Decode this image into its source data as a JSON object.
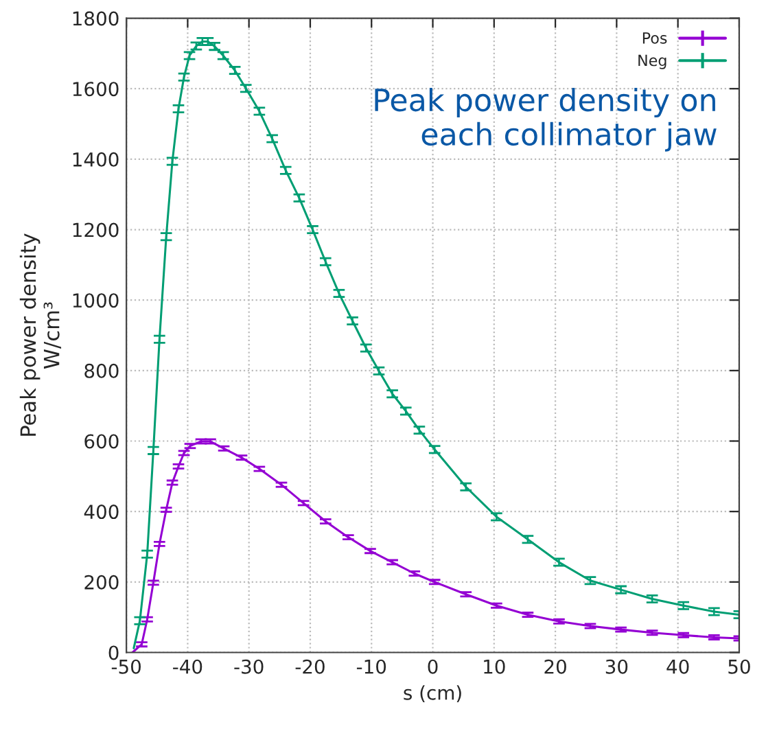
{
  "chart_data": {
    "type": "line",
    "xlabel": "s (cm)",
    "ylabel": "Peak power density\nW/cm³",
    "annotations": [
      "Peak power density on\neach collimator jaw"
    ],
    "xlim": [
      -50,
      50
    ],
    "xticks": [
      -50,
      -40,
      -30,
      -20,
      -10,
      0,
      10,
      20,
      30,
      40,
      50
    ],
    "ylim": [
      0,
      1800
    ],
    "yticks": [
      0,
      200,
      400,
      600,
      800,
      1000,
      1200,
      1400,
      1600,
      1800
    ],
    "grid": true,
    "legend": "top right",
    "marker": "none",
    "line_style": "solid",
    "series": [
      {
        "name": "Pos",
        "color": "#9400d3",
        "x": [
          -49,
          -47.5,
          -46.6,
          -45.6,
          -44.6,
          -43.5,
          -42.5,
          -41.5,
          -40.6,
          -39.6,
          -37.8,
          -36.3,
          -34.1,
          -31.2,
          -28.3,
          -24.7,
          -21.1,
          -17.5,
          -13.8,
          -10.2,
          -6.6,
          -3,
          0.3,
          5.4,
          10.4,
          15.5,
          20.6,
          25.7,
          30.7,
          35.8,
          40.9,
          45.9,
          50
        ],
        "values": [
          0,
          23,
          94,
          198,
          308,
          405,
          482,
          528,
          566,
          586,
          599,
          599,
          579,
          553,
          521,
          476,
          424,
          372,
          327,
          288,
          256,
          224,
          200,
          165,
          133,
          107,
          88,
          75,
          65,
          56,
          49,
          43,
          40
        ],
        "errors": [
          null,
          6,
          6,
          6,
          6,
          6,
          6,
          6,
          6,
          6,
          6,
          6,
          6,
          6,
          6,
          6,
          6,
          6,
          6,
          6,
          6,
          6,
          6,
          6,
          6,
          6,
          6,
          6,
          6,
          6,
          6,
          6,
          6
        ]
      },
      {
        "name": "Neg",
        "color": "#009e73",
        "x": [
          -48.8,
          -47.8,
          -46.6,
          -45.6,
          -44.6,
          -43.5,
          -42.5,
          -41.5,
          -40.6,
          -39.7,
          -38.6,
          -37.6,
          -36.7,
          -35.6,
          -34.2,
          -32.3,
          -30.5,
          -28.3,
          -26.2,
          -24,
          -21.8,
          -19.6,
          -17.5,
          -15.3,
          -13.1,
          -10.9,
          -8.8,
          -6.6,
          -4.4,
          -2.2,
          0.3,
          5.4,
          10.4,
          15.5,
          20.6,
          25.7,
          30.7,
          35.8,
          40.9,
          45.9,
          50
        ],
        "values": [
          12,
          90,
          279,
          573,
          889,
          1180,
          1394,
          1543,
          1633,
          1694,
          1721,
          1734,
          1734,
          1720,
          1694,
          1652,
          1601,
          1536,
          1458,
          1368,
          1290,
          1200,
          1109,
          1019,
          941,
          864,
          799,
          734,
          685,
          631,
          576,
          470,
          385,
          321,
          256,
          204,
          178,
          152,
          133,
          116,
          107
        ],
        "errors": [
          null,
          10,
          10,
          10,
          10,
          10,
          10,
          10,
          10,
          10,
          10,
          10,
          10,
          10,
          10,
          10,
          10,
          10,
          10,
          10,
          10,
          10,
          10,
          10,
          10,
          10,
          10,
          10,
          10,
          10,
          10,
          10,
          10,
          10,
          10,
          10,
          10,
          10,
          10,
          10,
          10
        ]
      }
    ]
  }
}
